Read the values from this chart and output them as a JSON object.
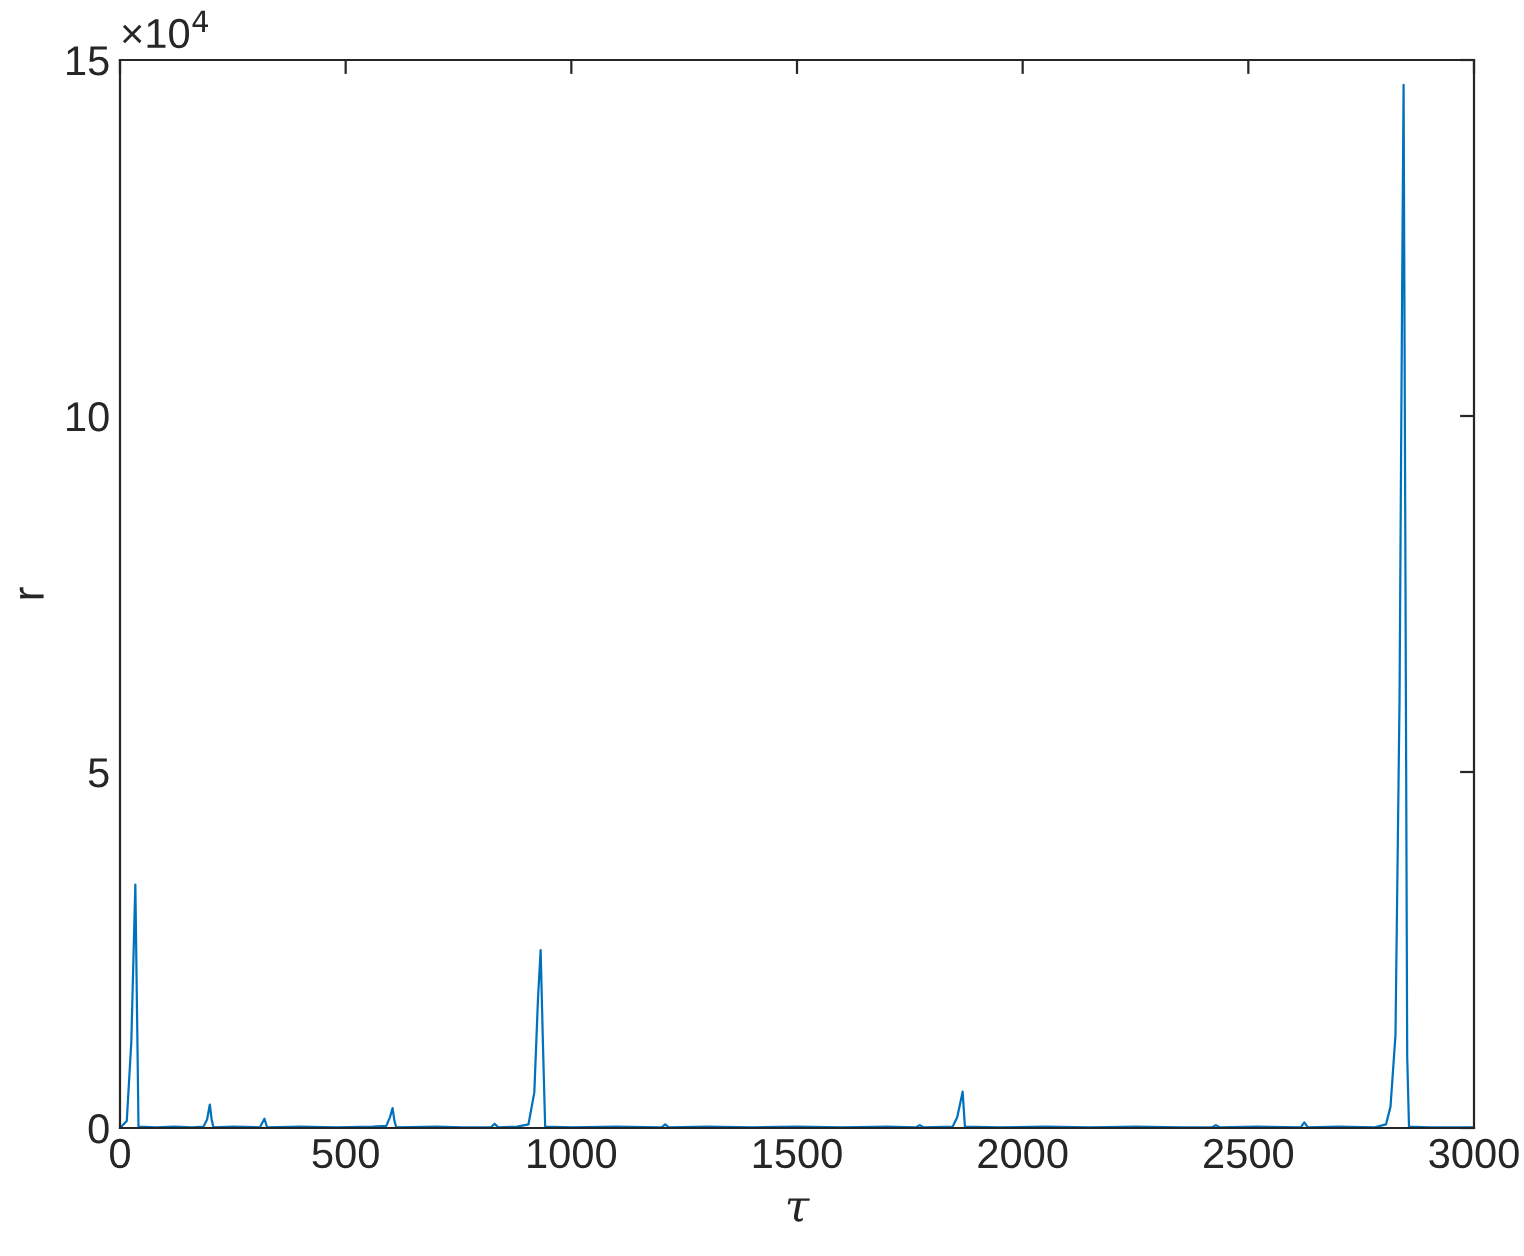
{
  "chart_data": {
    "type": "line",
    "xlabel": "τ",
    "ylabel": "r",
    "annotations": [
      "×10$^{4}$"
    ],
    "xlim": [
      0,
      3000
    ],
    "xticks": [
      0,
      500,
      1000,
      1500,
      2000,
      2500,
      3000
    ],
    "ylim": [
      0,
      15
    ],
    "yticks": [
      0,
      5,
      10,
      15
    ],
    "grid": false,
    "series": [
      {
        "color": "#0072bd",
        "x": [
          0,
          15,
          25,
          34,
          38,
          41,
          80,
          120,
          160,
          185,
          193,
          199,
          203,
          207,
          250,
          310,
          320,
          326,
          400,
          480,
          560,
          590,
          598,
          604,
          608,
          612,
          700,
          760,
          822,
          830,
          838,
          880,
          905,
          918,
          926,
          932,
          937,
          942,
          1000,
          1100,
          1200,
          1208,
          1216,
          1300,
          1400,
          1500,
          1600,
          1700,
          1764,
          1772,
          1780,
          1845,
          1855,
          1867,
          1872,
          1950,
          2050,
          2150,
          2250,
          2350,
          2420,
          2428,
          2436,
          2520,
          2616,
          2624,
          2632,
          2700,
          2780,
          2805,
          2815,
          2826,
          2835,
          2841,
          2844,
          2848,
          2852,
          2856,
          2900,
          3000
        ],
        "values": [
          0,
          0.1,
          1.2,
          3.42,
          1.5,
          0.02,
          0.01,
          0.02,
          0.01,
          0.02,
          0.12,
          0.33,
          0.12,
          0.01,
          0.02,
          0.01,
          0.13,
          0.01,
          0.02,
          0.01,
          0.02,
          0.03,
          0.15,
          0.28,
          0.1,
          0.01,
          0.02,
          0.01,
          0.01,
          0.06,
          0.01,
          0.02,
          0.05,
          0.5,
          1.8,
          2.5,
          1.2,
          0.02,
          0.01,
          0.02,
          0.01,
          0.05,
          0.01,
          0.02,
          0.01,
          0.02,
          0.01,
          0.02,
          0.01,
          0.04,
          0.01,
          0.02,
          0.15,
          0.51,
          0.02,
          0.01,
          0.02,
          0.01,
          0.02,
          0.01,
          0.01,
          0.04,
          0.01,
          0.02,
          0.01,
          0.08,
          0.01,
          0.02,
          0.01,
          0.05,
          0.3,
          1.3,
          6,
          12,
          14.65,
          8,
          1,
          0.02,
          0.01,
          0.01
        ]
      }
    ]
  }
}
